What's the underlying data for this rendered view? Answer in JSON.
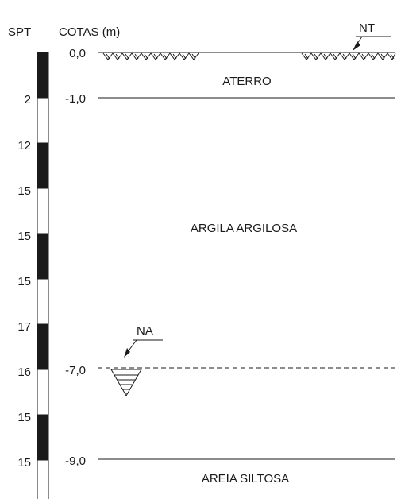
{
  "header": {
    "spt_title": "SPT",
    "cotas_title": "COTAS (m)"
  },
  "elevations": [
    {
      "label": "0,0",
      "value": 0.0,
      "line": "solid"
    },
    {
      "label": "-1,0",
      "value": -1.0,
      "line": "solid"
    },
    {
      "label": "-7,0",
      "value": -7.0,
      "line": "dashed"
    },
    {
      "label": "-9,0",
      "value": -9.0,
      "line": "solid"
    }
  ],
  "spt_values": [
    "2",
    "12",
    "15",
    "15",
    "15",
    "17",
    "16",
    "15",
    "15"
  ],
  "layers": [
    {
      "name": "ATERRO"
    },
    {
      "name": "ARGILA ARGILOSA"
    },
    {
      "name": "AREIA SILTOSA"
    }
  ],
  "markers": {
    "terrain": "NT",
    "water": "NA"
  },
  "colors": {
    "ink": "#1a1a1a",
    "background": "#ffffff"
  }
}
